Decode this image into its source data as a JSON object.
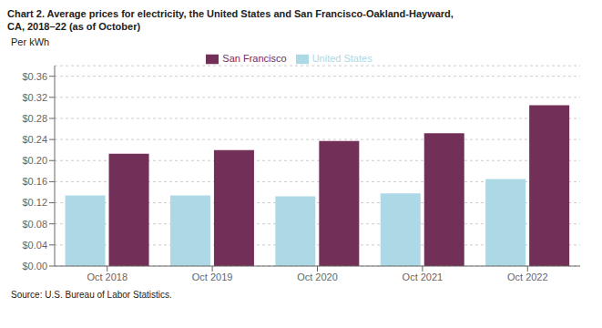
{
  "chart_data": {
    "type": "bar",
    "title": "Chart 2. Average prices for electricity, the United States and San Francisco-Oakland-Hayward,",
    "subtitle": "CA, 2018–22 (as of October)",
    "ylabel": "Per kWh",
    "annotations": [
      "Source: U.S. Bureau of Labor Statistics."
    ],
    "categories": [
      "Oct 2018",
      "Oct 2019",
      "Oct 2020",
      "Oct 2021",
      "Oct 2022"
    ],
    "series": [
      {
        "name": "United States",
        "color": "#add8e6",
        "values": [
          0.134,
          0.134,
          0.132,
          0.138,
          0.165
        ]
      },
      {
        "name": "San Francisco",
        "color": "#722f57",
        "values": [
          0.213,
          0.22,
          0.237,
          0.252,
          0.305
        ]
      }
    ],
    "ylim": [
      0,
      0.38
    ],
    "yticks": [
      {
        "value": 0.0,
        "label": "$0.00"
      },
      {
        "value": 0.04,
        "label": "$0.04"
      },
      {
        "value": 0.08,
        "label": "$0.08"
      },
      {
        "value": 0.12,
        "label": "$0.12"
      },
      {
        "value": 0.16,
        "label": "$0.16"
      },
      {
        "value": 0.2,
        "label": "$0.20"
      },
      {
        "value": 0.24,
        "label": "$0.24"
      },
      {
        "value": 0.28,
        "label": "$0.28"
      },
      {
        "value": 0.32,
        "label": "$0.32"
      },
      {
        "value": 0.36,
        "label": "$0.36"
      }
    ],
    "grid": true,
    "legend": "top"
  }
}
